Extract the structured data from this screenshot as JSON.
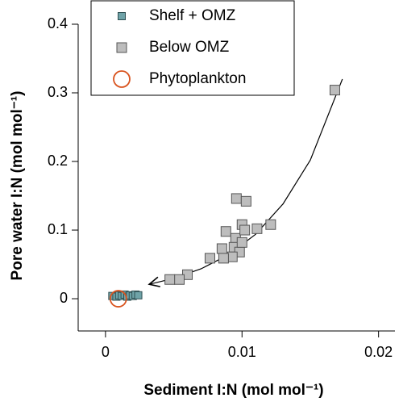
{
  "chart_data": {
    "type": "scatter",
    "xlabel": "Sediment I:N (mol mol⁻¹)",
    "ylabel": "Pore water I:N (mol mol⁻¹)",
    "xlim": [
      -0.002,
      0.0212
    ],
    "xticks": [
      0,
      0.01,
      0.02
    ],
    "ylim": [
      -0.047,
      0.4
    ],
    "yticks": [
      0,
      0.1,
      0.2,
      0.3,
      0.4
    ],
    "legend": "upper left",
    "series": [
      {
        "name": "Shelf + OMZ",
        "color": "#6fa3a8",
        "marker": "small-square",
        "x": [
          0.0005,
          0.0008,
          0.001,
          0.0012,
          0.0014,
          0.0016,
          0.0018,
          0.002,
          0.0022,
          0.0024
        ],
        "values": [
          0.004,
          0.003,
          0.005,
          0.004,
          0.006,
          0.003,
          0.005,
          0.004,
          0.006,
          0.005
        ]
      },
      {
        "name": "Below OMZ",
        "color": "#bdbdbd",
        "marker": "square",
        "x": [
          0.0168,
          0.00959,
          0.0103,
          0.01,
          0.0121,
          0.00882,
          0.0111,
          0.00953,
          0.0102,
          0.00853,
          0.00941,
          0.00982,
          0.00929,
          0.00765,
          0.00865,
          0.006,
          0.00541,
          0.00471,
          0.01
        ],
        "values": [
          0.304,
          0.146,
          0.142,
          0.108,
          0.108,
          0.098,
          0.102,
          0.088,
          0.1,
          0.073,
          0.075,
          0.068,
          0.061,
          0.059,
          0.059,
          0.035,
          0.028,
          0.028,
          0.082
        ]
      },
      {
        "name": "Phytoplankton",
        "color": "#d9531e",
        "marker": "circle",
        "x": [
          0.00094
        ],
        "values": [
          0
        ]
      }
    ],
    "fit": {
      "color": "#000000",
      "x": [
        0.0032,
        0.005,
        0.007,
        0.009,
        0.011,
        0.013,
        0.015,
        0.01735
      ],
      "y": [
        0.021,
        0.0297,
        0.0436,
        0.0639,
        0.0939,
        0.138,
        0.202,
        0.32
      ]
    }
  }
}
